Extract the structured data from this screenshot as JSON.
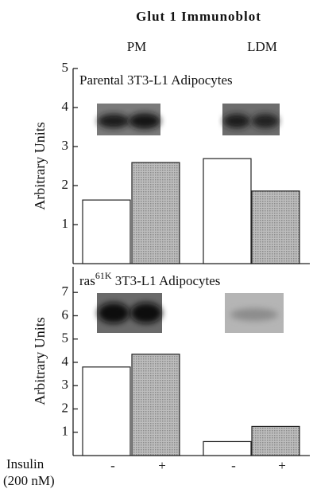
{
  "figure": {
    "title": "Glut 1 Immunoblot",
    "x_label": [
      "Insulin",
      "(200 nM)"
    ]
  },
  "chart_data": [
    {
      "type": "bar",
      "title": "Parental 3T3-L1 Adipocytes",
      "y_label": "Arbitrary Units",
      "groups": [
        "PM",
        "LDM"
      ],
      "values": [
        1.63,
        2.59,
        2.69,
        1.86
      ],
      "colors": [
        "#ffffff",
        "#a8a8a8",
        "#ffffff",
        "#a8a8a8"
      ],
      "ylim": [
        0,
        5
      ],
      "yticks": [
        1,
        2,
        3,
        4,
        5
      ]
    },
    {
      "type": "bar",
      "title": [
        "ras",
        "61K",
        " 3T3-L1 Adipocytes"
      ],
      "y_label": "Arbitrary Units",
      "categories": [
        "-",
        "+",
        "-",
        "+"
      ],
      "values": [
        3.8,
        4.35,
        0.6,
        1.25
      ],
      "colors": [
        "#ffffff",
        "#a8a8a8",
        "#ffffff",
        "#a8a8a8"
      ],
      "ylim": [
        0,
        8.1
      ],
      "yticks": [
        1,
        2,
        3,
        4,
        5,
        6,
        7
      ]
    }
  ]
}
